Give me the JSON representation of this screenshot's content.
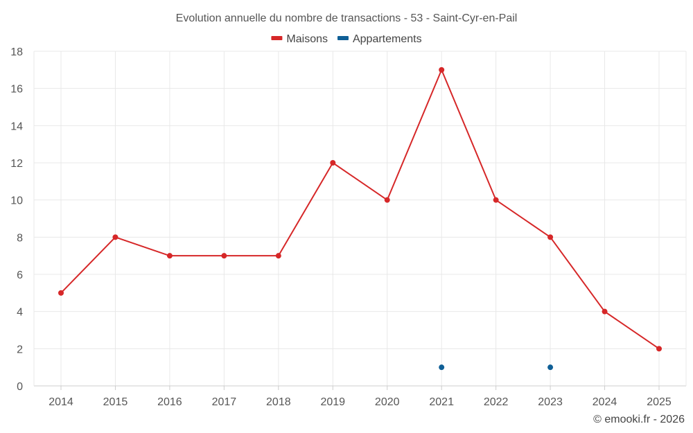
{
  "chart_data": {
    "type": "line",
    "title": "Evolution annuelle du nombre de transactions - 53 - Saint-Cyr-en-Pail",
    "xlabel": "",
    "ylabel": "",
    "x": [
      "2014",
      "2015",
      "2016",
      "2017",
      "2018",
      "2019",
      "2020",
      "2021",
      "2022",
      "2023",
      "2024",
      "2025"
    ],
    "ylim": [
      0,
      18
    ],
    "yticks": [
      0,
      2,
      4,
      6,
      8,
      10,
      12,
      14,
      16,
      18
    ],
    "grid": true,
    "legend_position": "top-center",
    "series": [
      {
        "name": "Maisons",
        "color": "#d62728",
        "values": [
          5,
          8,
          7,
          7,
          7,
          12,
          10,
          17,
          10,
          8,
          4,
          2
        ]
      },
      {
        "name": "Appartements",
        "color": "#0f5f96",
        "values": [
          null,
          null,
          null,
          null,
          null,
          null,
          null,
          1,
          null,
          1,
          null,
          null
        ]
      }
    ]
  },
  "credit": "© emooki.fr - 2026"
}
